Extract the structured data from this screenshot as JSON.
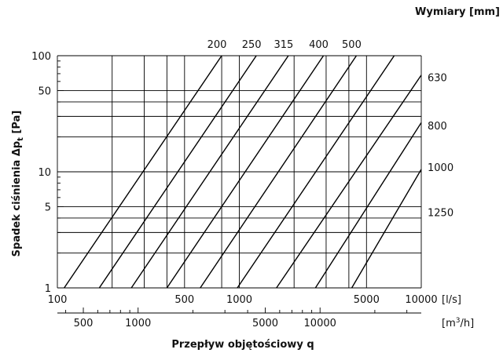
{
  "chart_data": {
    "type": "line",
    "xscale": "log",
    "yscale": "log",
    "xlim": [
      100,
      10000
    ],
    "ylim": [
      1,
      100
    ],
    "grid": true,
    "legend_title": "Wymiary [mm]",
    "ylabel_main": "Spadek ciśnienia Δp",
    "ylabel_sub": "t",
    "ylabel_unit": " [Pa]",
    "xlabel": "Przepływ objętościowy q",
    "x_unit_primary": "[l/s]",
    "x_unit_secondary_base": "[m",
    "x_unit_secondary_sup": "3",
    "x_unit_secondary_tail": "/h]",
    "x_ticks": [
      {
        "value": 100,
        "label": "100"
      },
      {
        "value": 500,
        "label": "500"
      },
      {
        "value": 1000,
        "label": "1000"
      },
      {
        "value": 5000,
        "label": "5000"
      },
      {
        "value": 10000,
        "label": "10000"
      }
    ],
    "x_secondary_ticks": [
      {
        "value": 500,
        "label": "500"
      },
      {
        "value": 1000,
        "label": "1000"
      },
      {
        "value": 5000,
        "label": "5000"
      },
      {
        "value": 10000,
        "label": "10000"
      }
    ],
    "y_ticks": [
      {
        "value": 1,
        "label": "1"
      },
      {
        "value": 5,
        "label": "5"
      },
      {
        "value": 10,
        "label": "10"
      },
      {
        "value": 50,
        "label": "50"
      },
      {
        "value": 100,
        "label": "100"
      }
    ],
    "x_grid": [
      100,
      200,
      300,
      400,
      500,
      800,
      1000,
      2000,
      3000,
      4000,
      5000,
      10000
    ],
    "y_grid": [
      1,
      2,
      3,
      4,
      5,
      10,
      20,
      30,
      40,
      50,
      100
    ],
    "series": [
      {
        "name": "200",
        "points": [
          [
            109,
            1.0
          ],
          [
            800,
            100
          ]
        ]
      },
      {
        "name": "250",
        "points": [
          [
            170,
            1.0
          ],
          [
            1240,
            100
          ]
        ]
      },
      {
        "name": "315",
        "points": [
          [
            255,
            1.0
          ],
          [
            1860,
            100
          ]
        ]
      },
      {
        "name": "400",
        "points": [
          [
            400,
            1.0
          ],
          [
            2900,
            100
          ]
        ]
      },
      {
        "name": "500",
        "points": [
          [
            610,
            1.0
          ],
          [
            4400,
            100
          ]
        ]
      },
      {
        "name": "630",
        "points": [
          [
            975,
            1.0
          ],
          [
            7100,
            100
          ]
        ]
      },
      {
        "name": "800",
        "points": [
          [
            1600,
            1.0
          ],
          [
            10000,
            68
          ]
        ]
      },
      {
        "name": "1000",
        "points": [
          [
            2620,
            1.0
          ],
          [
            10000,
            26.5
          ]
        ]
      },
      {
        "name": "1250",
        "points": [
          [
            4150,
            1.0
          ],
          [
            10000,
            10.5
          ]
        ]
      }
    ],
    "top_labels": [
      "200",
      "250",
      "315",
      "400",
      "500"
    ],
    "right_labels": [
      {
        "name": "630",
        "value": 65
      },
      {
        "name": "800",
        "value": 25
      },
      {
        "name": "1000",
        "value": 11
      },
      {
        "name": "1250",
        "value": 4.5
      }
    ]
  }
}
